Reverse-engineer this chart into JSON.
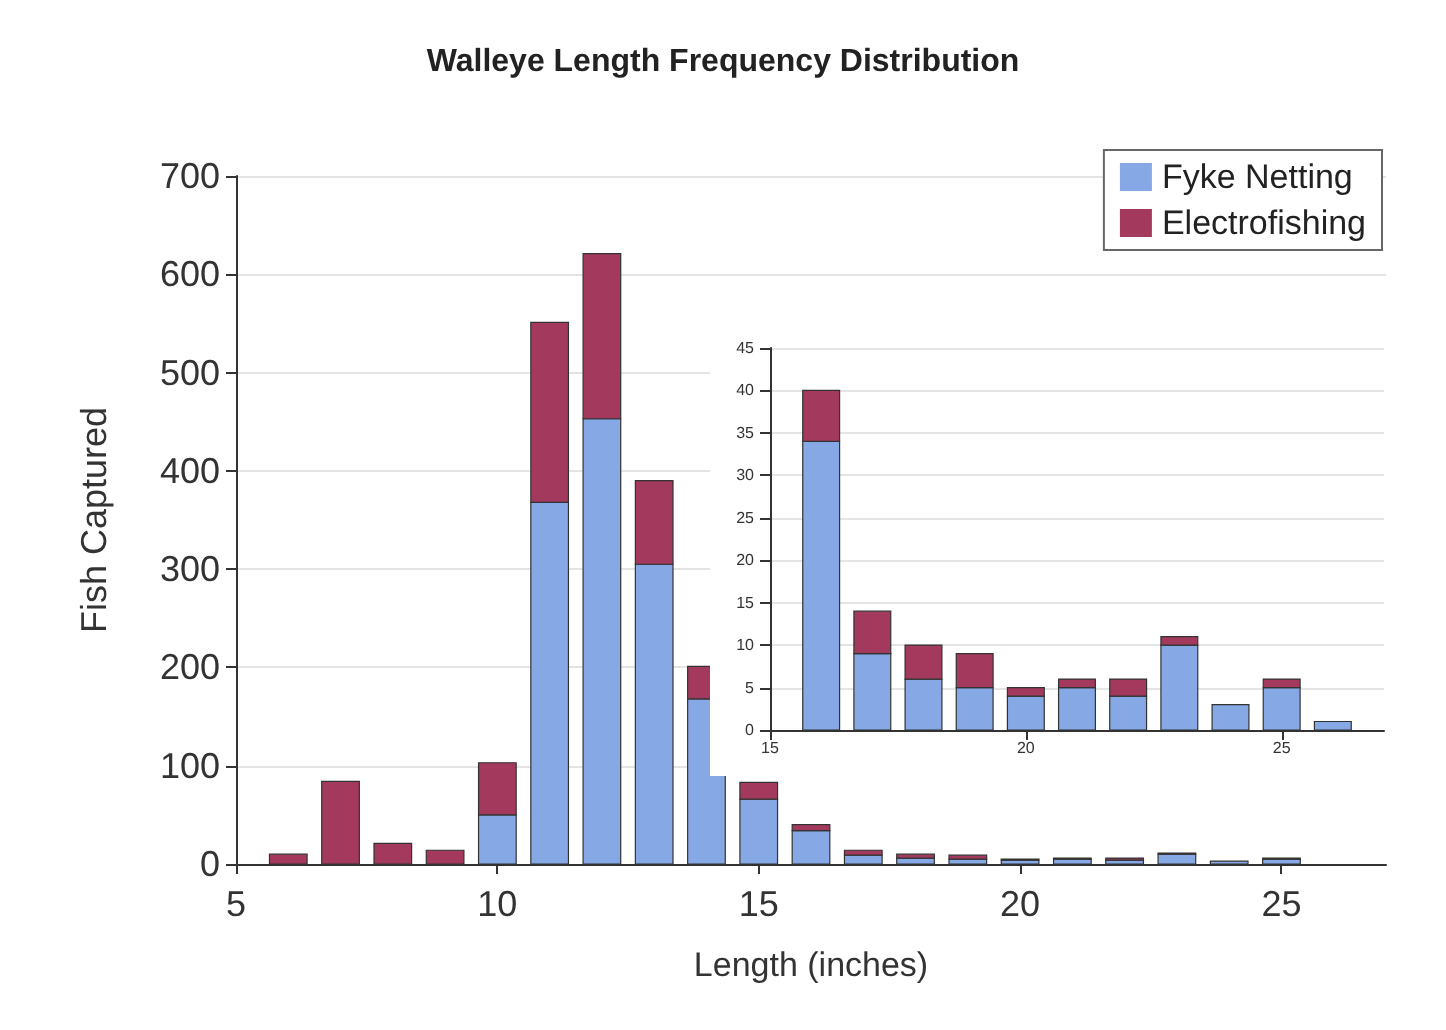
{
  "chart_data": [
    {
      "type": "bar",
      "title": "Walleye Length Frequency Distribution",
      "xlabel": "Length (inches)",
      "ylabel": "Fish Captured",
      "x": [
        6,
        7,
        8,
        9,
        10,
        11,
        12,
        13,
        14,
        15,
        16,
        17,
        18,
        19,
        20,
        21,
        22,
        23,
        24,
        25,
        26
      ],
      "series": [
        {
          "name": "Fyke Netting",
          "color": "#86a9e6",
          "values": [
            0,
            0,
            0,
            0,
            50,
            368,
            453,
            305,
            168,
            66,
            34,
            9,
            6,
            5,
            4,
            5,
            4,
            10,
            3,
            5,
            null
          ]
        },
        {
          "name": "Electrofishing",
          "color": "#a33a5e",
          "values": [
            10,
            84,
            21,
            14,
            53,
            183,
            168,
            85,
            33,
            17,
            6,
            5,
            4,
            4,
            1,
            1,
            2,
            1,
            0,
            1,
            0
          ]
        }
      ],
      "stacked": true,
      "xlim": [
        5,
        27
      ],
      "xticks": [
        5,
        10,
        15,
        20,
        25
      ],
      "ylim": [
        0,
        700
      ],
      "yticks": [
        0,
        100,
        200,
        300,
        400,
        500,
        600,
        700
      ],
      "grid": "y",
      "legend": "top right"
    },
    {
      "type": "bar",
      "x": [
        16,
        17,
        18,
        19,
        20,
        21,
        22,
        23,
        24,
        25,
        26
      ],
      "series": [
        {
          "color": "#86a9e6",
          "values": [
            34,
            9,
            6,
            5,
            4,
            5,
            4,
            10,
            3,
            5,
            1
          ]
        },
        {
          "color": "#a33a5e",
          "values": [
            6,
            5,
            4,
            4,
            1,
            1,
            2,
            1,
            0,
            1,
            0
          ]
        }
      ],
      "stacked": true,
      "xlim": [
        15,
        27
      ],
      "xticks": [
        15,
        20,
        25
      ],
      "ylim": [
        0,
        45
      ],
      "yticks": [
        0,
        5,
        10,
        15,
        20,
        25,
        30,
        35,
        40,
        45
      ],
      "grid": "y"
    }
  ]
}
